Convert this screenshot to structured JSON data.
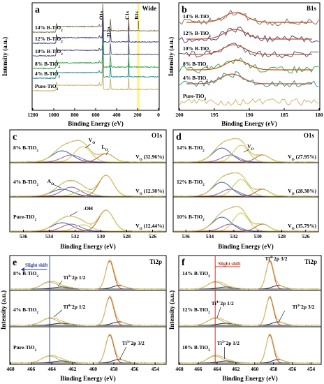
{
  "figure": {
    "colors": {
      "axis": "#000000",
      "pure": "#c8b067",
      "b4": "#1e8c8a",
      "b8": "#31a23c",
      "b10": "#4a4a72",
      "b12": "#3c3c80",
      "b14": "#7a6a4a",
      "fit_orange": "#c0502a",
      "fit_envelope": "#d4c36a",
      "o_lattice": "#b5651d",
      "o_vac": "#c8c84a",
      "o_ads": "#3a5fa8",
      "o_oh": "#8a5fb0",
      "ti_main": "#c0502a",
      "ti_small": "#2e2e2e",
      "ti_env": "#c8b067",
      "shift_blue": "#2d3e9c",
      "shift_red": "#c0392b",
      "highlight": "#fff27a"
    }
  },
  "chart_data": [
    {
      "panel": "a",
      "type": "line",
      "title": "Wide",
      "xlabel": "Binding Energy (eV)",
      "ylabel": "Intensity (a.u.)",
      "xlim": [
        1200,
        0
      ],
      "xticks": [
        "1200",
        "1000",
        "800",
        "600",
        "400",
        "200",
        "0"
      ],
      "peak_labels": [
        {
          "text": "O1s",
          "x": 531
        },
        {
          "text": "Ti2p",
          "x": 459
        },
        {
          "text": "C1s",
          "x": 285
        },
        {
          "text": "B1s",
          "x": 192
        }
      ],
      "series": [
        {
          "name": "14% B-TiO",
          "sub": "2",
          "color": "b14"
        },
        {
          "name": "12% B-TiO",
          "sub": "2",
          "color": "b12"
        },
        {
          "name": "10% B-TiO",
          "sub": "2",
          "color": "b10"
        },
        {
          "name": "8% B-TiO",
          "sub": "2",
          "color": "b8"
        },
        {
          "name": "4% B-TiO",
          "sub": "2",
          "color": "b4"
        },
        {
          "name": "Pure-TiO",
          "sub": "2",
          "color": "pure"
        }
      ]
    },
    {
      "panel": "b",
      "type": "line",
      "title": "B1s",
      "xlabel": "Binding Energy (eV)",
      "ylabel": "Intensity (a.u.)",
      "xlim": [
        200,
        180
      ],
      "xticks": [
        "200",
        "195",
        "190",
        "185",
        "180"
      ],
      "series": [
        {
          "name": "14% B-TiO",
          "sub": "2",
          "peak": 192.0,
          "color": "b14"
        },
        {
          "name": "12% B-TiO",
          "sub": "2",
          "peak": 192.0,
          "color": "b12"
        },
        {
          "name": "10% B-TiO",
          "sub": "2",
          "peak": 192.2,
          "color": "b10"
        },
        {
          "name": "8% B-TiO",
          "sub": "2",
          "peak": 191.8,
          "color": "b8"
        },
        {
          "name": "4% B-TiO",
          "sub": "2",
          "peak": 192.5,
          "color": "b4"
        },
        {
          "name": "Pure-TiO",
          "sub": "2",
          "peak": null,
          "color": "pure"
        }
      ]
    },
    {
      "panel": "c",
      "type": "line",
      "title": "O1s",
      "xlabel": "Binding Energy (eV)",
      "xlim": [
        537,
        525
      ],
      "xticks": [
        "536",
        "534",
        "532",
        "530",
        "528",
        "526"
      ],
      "peaks_eV": {
        "ads": 533.0,
        "oh": 532.3,
        "vac": 531.4,
        "lattice": 529.6
      },
      "series": [
        {
          "name": "8% B-TiO",
          "sub": "2",
          "vo_text": "V",
          "vo_sub": "O",
          "vo_value": "(32.96%)"
        },
        {
          "name": "4% B-TiO",
          "sub": "2",
          "vo_text": "V",
          "vo_sub": "O",
          "vo_value": "(12.30%)"
        },
        {
          "name": "Pure-TiO",
          "sub": "2",
          "vo_text": "V",
          "vo_sub": "O",
          "vo_value": "(12.44%)"
        }
      ],
      "annotations": [
        {
          "text": "V",
          "sub": "O"
        },
        {
          "text": "L",
          "sub": "O"
        },
        {
          "text": "A",
          "sub": "O"
        },
        {
          "text": "-OH",
          "sub": ""
        }
      ]
    },
    {
      "panel": "d",
      "type": "line",
      "title": "O1s",
      "xlabel": "Binding Energy (eV)",
      "xlim": [
        537,
        525
      ],
      "xticks": [
        "536",
        "534",
        "532",
        "530",
        "528",
        "526"
      ],
      "series": [
        {
          "name": "14% B-TiO",
          "sub": "2",
          "vo_text": "V",
          "vo_sub": "O",
          "vo_value": "(27.95%)"
        },
        {
          "name": "12% B-TiO",
          "sub": "2",
          "vo_text": "V",
          "vo_sub": "O",
          "vo_value": "(28.30%)"
        },
        {
          "name": "10% B-TiO",
          "sub": "2",
          "vo_text": "V",
          "vo_sub": "O",
          "vo_value": "(35.79%)"
        }
      ],
      "annotations": [
        {
          "text": "V",
          "sub": "O"
        }
      ]
    },
    {
      "panel": "e",
      "type": "line",
      "title": "Ti2p",
      "xlabel": "Binding Energy (eV)",
      "ylabel": "Intensity (a.u.)",
      "xlim": [
        468,
        453
      ],
      "xticks": [
        "468",
        "466",
        "464",
        "462",
        "460",
        "458",
        "456",
        "454"
      ],
      "shift_label": "Slight shift",
      "shift_x": 464.2,
      "series": [
        {
          "name": "8% B-TiO",
          "sub": "2",
          "peaks": [
            464.2,
            458.4
          ]
        },
        {
          "name": "4% B-TiO",
          "sub": "2",
          "peaks": [
            464.2,
            458.4
          ]
        },
        {
          "name": "Pure-TiO",
          "sub": "2",
          "peaks": [
            464.2,
            458.4
          ]
        }
      ],
      "annotations": [
        {
          "ion": "Ti",
          "charge": "3+",
          "text": "2p 1/2"
        },
        {
          "ion": "Ti",
          "charge": "4+",
          "text": "2p 1/2"
        },
        {
          "ion": "Ti",
          "charge": "3+",
          "text": "2p 3/2"
        }
      ]
    },
    {
      "panel": "f",
      "type": "line",
      "title": "Ti2p",
      "xlabel": "Binding Energy (eV)",
      "ylabel": "Intensity (a.u.)",
      "xlim": [
        468,
        453
      ],
      "xticks": [
        "468",
        "466",
        "464",
        "462",
        "460",
        "458",
        "456",
        "454"
      ],
      "shift_label": "Slight shift",
      "shift_x": 464.2,
      "series": [
        {
          "name": "14% B-TiO",
          "sub": "2",
          "peaks": [
            464.2,
            458.4
          ]
        },
        {
          "name": "12% B-TiO",
          "sub": "2",
          "peaks": [
            464.2,
            458.4
          ]
        },
        {
          "name": "10% B-TiO",
          "sub": "2",
          "peaks": [
            464.2,
            458.4
          ]
        }
      ],
      "annotations": [
        {
          "ion": "Ti",
          "charge": "4+",
          "text": "2p 3/2"
        },
        {
          "ion": "Ti",
          "charge": "4+",
          "text": "2p 1/2"
        },
        {
          "ion": "Ti",
          "charge": "3+",
          "text": "2p 3/2"
        },
        {
          "ion": "Ti",
          "charge": "3+",
          "text": "2p 1/2"
        }
      ]
    }
  ]
}
